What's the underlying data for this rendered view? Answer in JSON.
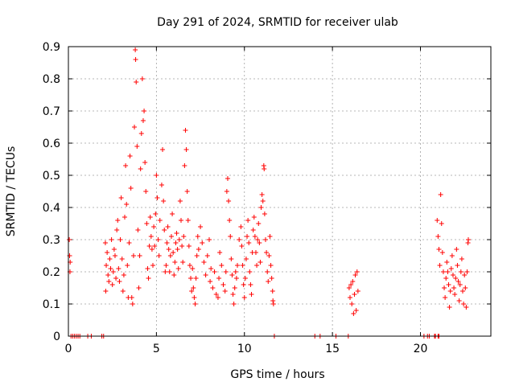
{
  "chart_data": {
    "type": "scatter",
    "title": "Day 291 of 2024, SRMTID for receiver ulab",
    "xlabel": "GPS time / hours",
    "ylabel": "SRMTID / TECUs",
    "xlim": [
      0,
      24
    ],
    "ylim": [
      0,
      0.9
    ],
    "xticks": [
      0,
      5,
      10,
      15,
      20
    ],
    "yticks": [
      0,
      0.1,
      0.2,
      0.3,
      0.4,
      0.5,
      0.6,
      0.7,
      0.8,
      0.9
    ],
    "xtick_labels": [
      "0",
      "5",
      "10",
      "15",
      "20"
    ],
    "ytick_labels": [
      "0",
      "0.1",
      "0.2",
      "0.3",
      "0.4",
      "0.5",
      "0.6",
      "0.7",
      "0.8",
      "0.9"
    ],
    "grid": true,
    "marker": "+",
    "color": "#ff0000",
    "series": [
      {
        "name": "SRMTID",
        "points": [
          [
            0.05,
            0.3
          ],
          [
            0.07,
            0.25
          ],
          [
            0.09,
            0.2
          ],
          [
            0.1,
            0.23
          ],
          [
            0.15,
            0.0
          ],
          [
            0.25,
            0.0
          ],
          [
            0.35,
            0.0
          ],
          [
            0.45,
            0.0
          ],
          [
            0.55,
            0.0
          ],
          [
            0.65,
            0.0
          ],
          [
            1.1,
            0.0
          ],
          [
            1.3,
            0.0
          ],
          [
            1.9,
            0.0
          ],
          [
            2.0,
            0.0
          ],
          [
            2.1,
            0.29
          ],
          [
            2.12,
            0.14
          ],
          [
            2.15,
            0.22
          ],
          [
            2.2,
            0.26
          ],
          [
            2.25,
            0.19
          ],
          [
            2.3,
            0.17
          ],
          [
            2.35,
            0.24
          ],
          [
            2.4,
            0.21
          ],
          [
            2.45,
            0.3
          ],
          [
            2.5,
            0.16
          ],
          [
            2.55,
            0.2
          ],
          [
            2.6,
            0.27
          ],
          [
            2.65,
            0.25
          ],
          [
            2.7,
            0.18
          ],
          [
            2.75,
            0.33
          ],
          [
            2.8,
            0.36
          ],
          [
            2.85,
            0.21
          ],
          [
            2.9,
            0.17
          ],
          [
            2.95,
            0.3
          ],
          [
            3.0,
            0.43
          ],
          [
            3.05,
            0.24
          ],
          [
            3.1,
            0.14
          ],
          [
            3.15,
            0.19
          ],
          [
            3.2,
            0.37
          ],
          [
            3.25,
            0.53
          ],
          [
            3.3,
            0.41
          ],
          [
            3.35,
            0.22
          ],
          [
            3.4,
            0.12
          ],
          [
            3.45,
            0.29
          ],
          [
            3.5,
            0.56
          ],
          [
            3.55,
            0.46
          ],
          [
            3.6,
            0.12
          ],
          [
            3.65,
            0.1
          ],
          [
            3.7,
            0.25
          ],
          [
            3.75,
            0.65
          ],
          [
            3.8,
            0.89
          ],
          [
            3.82,
            0.86
          ],
          [
            3.85,
            0.79
          ],
          [
            3.9,
            0.59
          ],
          [
            3.95,
            0.33
          ],
          [
            4.0,
            0.15
          ],
          [
            4.05,
            0.25
          ],
          [
            4.1,
            0.52
          ],
          [
            4.15,
            0.63
          ],
          [
            4.2,
            0.8
          ],
          [
            4.25,
            0.67
          ],
          [
            4.3,
            0.7
          ],
          [
            4.35,
            0.54
          ],
          [
            4.4,
            0.45
          ],
          [
            4.45,
            0.35
          ],
          [
            4.5,
            0.21
          ],
          [
            4.55,
            0.18
          ],
          [
            4.6,
            0.28
          ],
          [
            4.65,
            0.37
          ],
          [
            4.7,
            0.31
          ],
          [
            4.75,
            0.27
          ],
          [
            4.8,
            0.22
          ],
          [
            4.85,
            0.34
          ],
          [
            4.9,
            0.28
          ],
          [
            4.95,
            0.38
          ],
          [
            5.0,
            0.5
          ],
          [
            5.05,
            0.43
          ],
          [
            5.1,
            0.3
          ],
          [
            5.15,
            0.25
          ],
          [
            5.2,
            0.36
          ],
          [
            5.3,
            0.47
          ],
          [
            5.35,
            0.58
          ],
          [
            5.4,
            0.42
          ],
          [
            5.45,
            0.33
          ],
          [
            5.5,
            0.2
          ],
          [
            5.55,
            0.22
          ],
          [
            5.6,
            0.29
          ],
          [
            5.65,
            0.34
          ],
          [
            5.7,
            0.27
          ],
          [
            5.75,
            0.2
          ],
          [
            5.8,
            0.25
          ],
          [
            5.85,
            0.31
          ],
          [
            5.9,
            0.38
          ],
          [
            5.95,
            0.26
          ],
          [
            6.0,
            0.19
          ],
          [
            6.05,
            0.23
          ],
          [
            6.1,
            0.29
          ],
          [
            6.15,
            0.32
          ],
          [
            6.2,
            0.27
          ],
          [
            6.25,
            0.21
          ],
          [
            6.3,
            0.3
          ],
          [
            6.35,
            0.42
          ],
          [
            6.4,
            0.36
          ],
          [
            6.45,
            0.28
          ],
          [
            6.5,
            0.23
          ],
          [
            6.55,
            0.31
          ],
          [
            6.6,
            0.53
          ],
          [
            6.65,
            0.64
          ],
          [
            6.7,
            0.58
          ],
          [
            6.75,
            0.45
          ],
          [
            6.8,
            0.36
          ],
          [
            6.85,
            0.28
          ],
          [
            6.9,
            0.22
          ],
          [
            6.95,
            0.18
          ],
          [
            7.0,
            0.14
          ],
          [
            7.05,
            0.21
          ],
          [
            7.1,
            0.15
          ],
          [
            7.15,
            0.12
          ],
          [
            7.2,
            0.1
          ],
          [
            7.25,
            0.18
          ],
          [
            7.3,
            0.25
          ],
          [
            7.35,
            0.31
          ],
          [
            7.4,
            0.27
          ],
          [
            7.5,
            0.34
          ],
          [
            7.6,
            0.29
          ],
          [
            7.7,
            0.23
          ],
          [
            7.8,
            0.19
          ],
          [
            7.9,
            0.25
          ],
          [
            8.0,
            0.3
          ],
          [
            8.05,
            0.17
          ],
          [
            8.1,
            0.21
          ],
          [
            8.2,
            0.15
          ],
          [
            8.3,
            0.2
          ],
          [
            8.4,
            0.13
          ],
          [
            8.5,
            0.12
          ],
          [
            8.55,
            0.18
          ],
          [
            8.6,
            0.26
          ],
          [
            8.7,
            0.22
          ],
          [
            8.8,
            0.16
          ],
          [
            8.9,
            0.14
          ],
          [
            8.95,
            0.2
          ],
          [
            9.0,
            0.45
          ],
          [
            9.05,
            0.49
          ],
          [
            9.1,
            0.42
          ],
          [
            9.15,
            0.36
          ],
          [
            9.2,
            0.31
          ],
          [
            9.25,
            0.24
          ],
          [
            9.3,
            0.19
          ],
          [
            9.35,
            0.13
          ],
          [
            9.4,
            0.1
          ],
          [
            9.45,
            0.15
          ],
          [
            9.5,
            0.2
          ],
          [
            9.55,
            0.18
          ],
          [
            9.6,
            0.22
          ],
          [
            9.7,
            0.3
          ],
          [
            9.8,
            0.34
          ],
          [
            9.85,
            0.28
          ],
          [
            9.9,
            0.22
          ],
          [
            9.95,
            0.16
          ],
          [
            10.0,
            0.12
          ],
          [
            10.05,
            0.18
          ],
          [
            10.1,
            0.24
          ],
          [
            10.15,
            0.31
          ],
          [
            10.2,
            0.36
          ],
          [
            10.25,
            0.29
          ],
          [
            10.3,
            0.2
          ],
          [
            10.35,
            0.16
          ],
          [
            10.4,
            0.13
          ],
          [
            10.45,
            0.26
          ],
          [
            10.5,
            0.33
          ],
          [
            10.55,
            0.37
          ],
          [
            10.6,
            0.31
          ],
          [
            10.65,
            0.26
          ],
          [
            10.7,
            0.22
          ],
          [
            10.75,
            0.3
          ],
          [
            10.8,
            0.35
          ],
          [
            10.85,
            0.29
          ],
          [
            10.9,
            0.23
          ],
          [
            10.95,
            0.4
          ],
          [
            11.0,
            0.44
          ],
          [
            11.05,
            0.42
          ],
          [
            11.1,
            0.53
          ],
          [
            11.12,
            0.52
          ],
          [
            11.15,
            0.38
          ],
          [
            11.2,
            0.3
          ],
          [
            11.25,
            0.26
          ],
          [
            11.3,
            0.2
          ],
          [
            11.35,
            0.17
          ],
          [
            11.4,
            0.25
          ],
          [
            11.45,
            0.31
          ],
          [
            11.5,
            0.22
          ],
          [
            11.55,
            0.18
          ],
          [
            11.6,
            0.14
          ],
          [
            11.62,
            0.11
          ],
          [
            11.65,
            0.1
          ],
          [
            11.7,
            0.0
          ],
          [
            14.0,
            0.0
          ],
          [
            14.3,
            0.0
          ],
          [
            15.2,
            0.0
          ],
          [
            15.9,
            0.0
          ],
          [
            15.95,
            0.15
          ],
          [
            16.0,
            0.12
          ],
          [
            16.05,
            0.16
          ],
          [
            16.1,
            0.1
          ],
          [
            16.15,
            0.17
          ],
          [
            16.2,
            0.07
          ],
          [
            16.25,
            0.13
          ],
          [
            16.3,
            0.19
          ],
          [
            16.35,
            0.08
          ],
          [
            16.4,
            0.2
          ],
          [
            16.45,
            0.14
          ],
          [
            20.2,
            0.0
          ],
          [
            20.4,
            0.0
          ],
          [
            20.5,
            0.0
          ],
          [
            20.8,
            0.0
          ],
          [
            20.85,
            0.0
          ],
          [
            21.0,
            0.0
          ],
          [
            21.05,
            0.0
          ],
          [
            20.95,
            0.36
          ],
          [
            21.0,
            0.31
          ],
          [
            21.05,
            0.27
          ],
          [
            21.1,
            0.22
          ],
          [
            21.15,
            0.44
          ],
          [
            21.2,
            0.35
          ],
          [
            21.25,
            0.26
          ],
          [
            21.3,
            0.2
          ],
          [
            21.35,
            0.15
          ],
          [
            21.4,
            0.12
          ],
          [
            21.45,
            0.18
          ],
          [
            21.5,
            0.23
          ],
          [
            21.55,
            0.2
          ],
          [
            21.6,
            0.16
          ],
          [
            21.65,
            0.09
          ],
          [
            21.7,
            0.14
          ],
          [
            21.75,
            0.21
          ],
          [
            21.8,
            0.25
          ],
          [
            21.85,
            0.19
          ],
          [
            21.9,
            0.15
          ],
          [
            21.95,
            0.13
          ],
          [
            22.0,
            0.18
          ],
          [
            22.05,
            0.27
          ],
          [
            22.1,
            0.22
          ],
          [
            22.15,
            0.17
          ],
          [
            22.2,
            0.11
          ],
          [
            22.25,
            0.16
          ],
          [
            22.3,
            0.2
          ],
          [
            22.35,
            0.24
          ],
          [
            22.4,
            0.14
          ],
          [
            22.45,
            0.1
          ],
          [
            22.5,
            0.19
          ],
          [
            22.55,
            0.15
          ],
          [
            22.6,
            0.09
          ],
          [
            22.65,
            0.2
          ],
          [
            22.7,
            0.29
          ],
          [
            22.72,
            0.3
          ]
        ]
      }
    ]
  }
}
